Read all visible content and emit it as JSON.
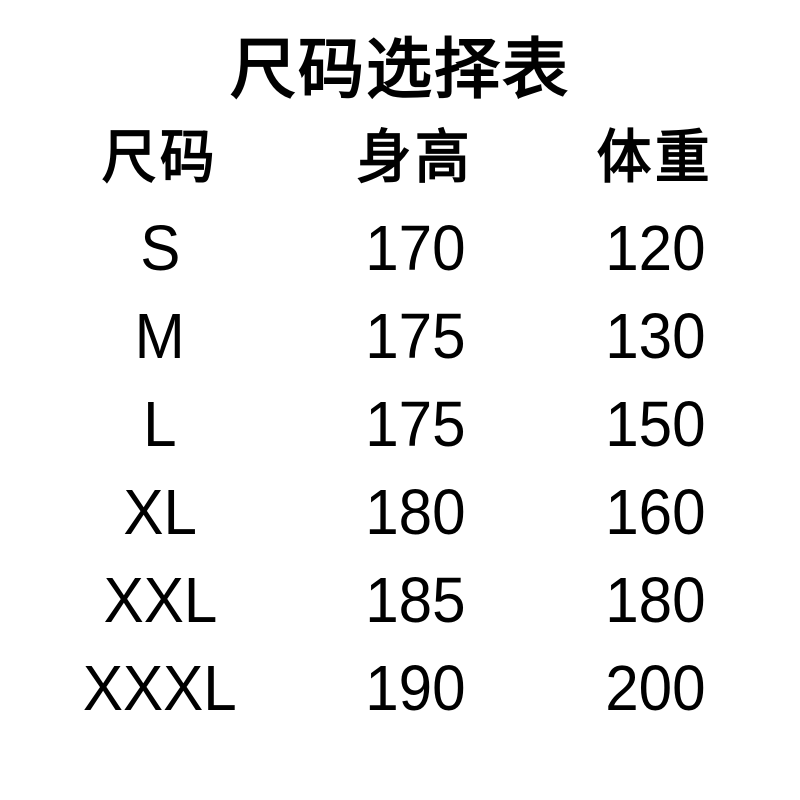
{
  "page": {
    "background_color": "#ffffff",
    "text_color": "#000000"
  },
  "chart_data": {
    "type": "table",
    "title": "尺码选择表",
    "columns": [
      "尺码",
      "身高",
      "体重"
    ],
    "rows": [
      [
        "S",
        "170",
        "120"
      ],
      [
        "M",
        "175",
        "130"
      ],
      [
        "L",
        "175",
        "150"
      ],
      [
        "XL",
        "180",
        "160"
      ],
      [
        "XXL",
        "185",
        "180"
      ],
      [
        "XXXL",
        "190",
        "200"
      ]
    ]
  }
}
